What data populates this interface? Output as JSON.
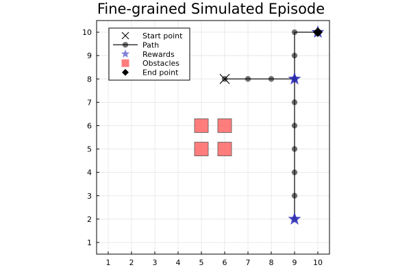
{
  "chart_data": {
    "type": "scatter",
    "title": "Fine-grained Simulated Episode",
    "xlabel": "",
    "ylabel": "",
    "xlim": [
      0.5,
      10.5
    ],
    "ylim": [
      0.5,
      10.5
    ],
    "xticks": [
      1,
      2,
      3,
      4,
      5,
      6,
      7,
      8,
      9,
      10
    ],
    "yticks": [
      1,
      2,
      3,
      4,
      5,
      6,
      7,
      8,
      9,
      10
    ],
    "grid": true,
    "legend_position": "top-left",
    "series": [
      {
        "name": "Start point",
        "marker": "x-cross",
        "color": "#000000",
        "points": [
          [
            6,
            8
          ]
        ]
      },
      {
        "name": "Path",
        "marker": "circle-line",
        "color": "#000000",
        "points": [
          [
            6,
            8
          ],
          [
            7,
            8
          ],
          [
            8,
            8
          ],
          [
            9,
            8
          ],
          [
            9,
            7
          ],
          [
            9,
            6
          ],
          [
            9,
            5
          ],
          [
            9,
            4
          ],
          [
            9,
            3
          ],
          [
            9,
            2
          ],
          [
            9,
            8
          ],
          [
            9,
            9
          ],
          [
            9,
            10
          ],
          [
            10,
            10
          ]
        ]
      },
      {
        "name": "Rewards",
        "marker": "star",
        "color": "#2f2fc0",
        "points": [
          [
            9,
            8
          ],
          [
            9,
            2
          ],
          [
            10,
            10
          ]
        ]
      },
      {
        "name": "Obstacles",
        "marker": "square",
        "color": "#ff6666",
        "points": [
          [
            5,
            5
          ],
          [
            6,
            5
          ],
          [
            5,
            6
          ],
          [
            6,
            6
          ]
        ]
      },
      {
        "name": "End point",
        "marker": "diamond",
        "color": "#000000",
        "points": [
          [
            10,
            10
          ]
        ]
      }
    ]
  }
}
